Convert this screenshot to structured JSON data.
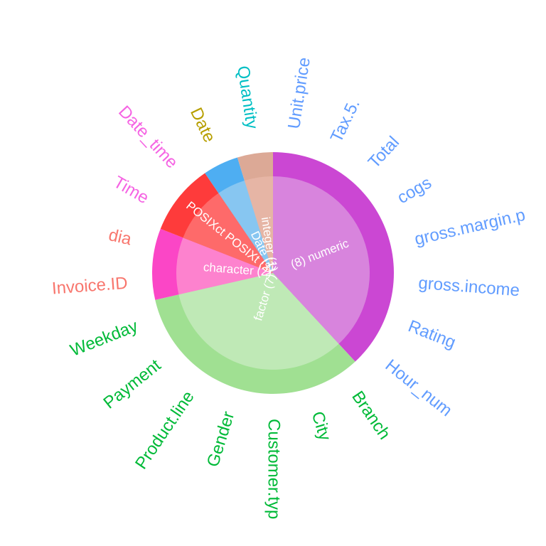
{
  "chart_data": {
    "type": "pie",
    "title": "",
    "inner_ring": [
      {
        "label": "(8) numeric",
        "count": 8,
        "color": "#d884dd"
      },
      {
        "label": "factor (7)",
        "count": 7,
        "color": "#bfe9b6"
      },
      {
        "label": "character (2)",
        "count": 2,
        "color": "#fd82ce"
      },
      {
        "label": "POSIXct POSIXt (2)",
        "count": 2,
        "color": "#fe6a6a"
      },
      {
        "label": "Date (1)",
        "count": 1,
        "color": "#87c6f1"
      },
      {
        "label": "integer (1)",
        "count": 1,
        "color": "#e6b5a5"
      }
    ],
    "outer_ring": [
      {
        "group": "numeric",
        "count": 8,
        "color": "#cb47d3"
      },
      {
        "group": "factor",
        "count": 7,
        "color": "#a0e092"
      },
      {
        "group": "character",
        "count": 2,
        "color": "#fb46c6"
      },
      {
        "group": "POSIXct POSIXt",
        "count": 2,
        "color": "#fe3b3b"
      },
      {
        "group": "Date",
        "count": 1,
        "color": "#4eaef2"
      },
      {
        "group": "integer",
        "count": 1,
        "color": "#dca996"
      }
    ],
    "variables": [
      {
        "name": "Unit.price",
        "group": "numeric",
        "color": "#619cff"
      },
      {
        "name": "Tax.5.",
        "group": "numeric",
        "color": "#619cff"
      },
      {
        "name": "Total",
        "group": "numeric",
        "color": "#619cff"
      },
      {
        "name": "cogs",
        "group": "numeric",
        "color": "#619cff"
      },
      {
        "name": "gross.margin.p",
        "group": "numeric",
        "color": "#619cff"
      },
      {
        "name": "gross.income",
        "group": "numeric",
        "color": "#619cff"
      },
      {
        "name": "Rating",
        "group": "numeric",
        "color": "#619cff"
      },
      {
        "name": "Hour_num",
        "group": "numeric",
        "color": "#619cff"
      },
      {
        "name": "Branch",
        "group": "factor",
        "color": "#00ba38"
      },
      {
        "name": "City",
        "group": "factor",
        "color": "#00ba38"
      },
      {
        "name": "Customer.typ",
        "group": "factor",
        "color": "#00ba38"
      },
      {
        "name": "Gender",
        "group": "factor",
        "color": "#00ba38"
      },
      {
        "name": "Product.line",
        "group": "factor",
        "color": "#00ba38"
      },
      {
        "name": "Payment",
        "group": "factor",
        "color": "#00ba38"
      },
      {
        "name": "Weekday",
        "group": "factor",
        "color": "#00ba38"
      },
      {
        "name": "Invoice.ID",
        "group": "character",
        "color": "#f8766d"
      },
      {
        "name": "dia",
        "group": "character",
        "color": "#f8766d"
      },
      {
        "name": "Time",
        "group": "POSIXct POSIXt",
        "color": "#f564e3"
      },
      {
        "name": "Date_time",
        "group": "POSIXct POSIXt",
        "color": "#f564e3"
      },
      {
        "name": "Date",
        "group": "Date",
        "color": "#b79f00"
      },
      {
        "name": "Quantity",
        "group": "integer",
        "color": "#00bfc4"
      }
    ]
  }
}
